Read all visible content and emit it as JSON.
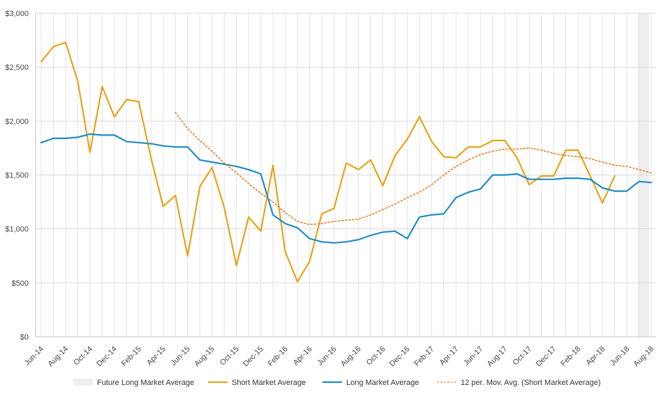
{
  "chart_data": {
    "type": "line",
    "categories": [
      "Jun-14",
      "Jul-14",
      "Aug-14",
      "Sep-14",
      "Oct-14",
      "Nov-14",
      "Dec-14",
      "Jan-15",
      "Feb-15",
      "Mar-15",
      "Apr-15",
      "May-15",
      "Jun-15",
      "Jul-15",
      "Aug-15",
      "Sep-15",
      "Oct-15",
      "Nov-15",
      "Dec-15",
      "Jan-16",
      "Feb-16",
      "Mar-16",
      "Apr-16",
      "May-16",
      "Jun-16",
      "Jul-16",
      "Aug-16",
      "Sep-16",
      "Oct-16",
      "Nov-16",
      "Dec-16",
      "Jan-17",
      "Feb-17",
      "Mar-17",
      "Apr-17",
      "May-17",
      "Jun-17",
      "Jul-17",
      "Aug-17",
      "Sep-17",
      "Oct-17",
      "Nov-17",
      "Dec-17",
      "Jan-18",
      "Feb-18",
      "Mar-18",
      "Apr-18",
      "May-18",
      "Jun-18",
      "Jul-18",
      "Aug-18"
    ],
    "tick_labels": [
      "Jun-14",
      "Aug-14",
      "Oct-14",
      "Dec-14",
      "Feb-15",
      "Apr-15",
      "Jun-15",
      "Aug-15",
      "Oct-15",
      "Dec-15",
      "Feb-16",
      "Apr-16",
      "Jun-16",
      "Aug-16",
      "Oct-16",
      "Dec-16",
      "Feb-17",
      "Apr-17",
      "Jun-17",
      "Aug-17",
      "Oct-17",
      "Dec-17",
      "Feb-18",
      "Apr-18",
      "Jun-18",
      "Aug-18"
    ],
    "y_tick_labels": [
      "$0",
      "$500",
      "$1,000",
      "$1,500",
      "$2,000",
      "$2,500",
      "$3,000"
    ],
    "ylim": [
      0,
      3000
    ],
    "ytick_step": 500,
    "grid": true,
    "legend_position": "bottom",
    "series": [
      {
        "name": "Short Market Average",
        "color": "#E8A317",
        "style": "solid",
        "values": [
          2550,
          2690,
          2730,
          2370,
          1710,
          2320,
          2040,
          2200,
          2180,
          1660,
          1210,
          1310,
          750,
          1390,
          1570,
          1200,
          660,
          1110,
          980,
          1590,
          790,
          510,
          700,
          1140,
          1190,
          1610,
          1550,
          1640,
          1400,
          1680,
          1830,
          2040,
          1810,
          1670,
          1660,
          1760,
          1760,
          1820,
          1820,
          1660,
          1410,
          1490,
          1490,
          1730,
          1730,
          1490,
          1240,
          1490,
          null,
          null,
          null
        ]
      },
      {
        "name": "Long Market Average",
        "color": "#1F8DC6",
        "style": "solid",
        "values": [
          1800,
          1840,
          1840,
          1850,
          1880,
          1870,
          1870,
          1810,
          1800,
          1790,
          1770,
          1760,
          1760,
          1640,
          1620,
          1600,
          1580,
          1550,
          1510,
          1130,
          1050,
          1010,
          910,
          880,
          870,
          880,
          900,
          940,
          970,
          980,
          910,
          1110,
          1130,
          1140,
          1290,
          1340,
          1370,
          1500,
          1500,
          1510,
          1460,
          1460,
          1460,
          1470,
          1470,
          1460,
          1380,
          1350,
          1350,
          1440,
          1430
        ]
      },
      {
        "name": "12 per. Mov. Avg.  (Short Market Average)",
        "color": "#E67E22",
        "style": "dotted",
        "values": [
          null,
          null,
          null,
          null,
          null,
          null,
          null,
          null,
          null,
          null,
          null,
          2080,
          1930,
          1820,
          1720,
          1610,
          1520,
          1420,
          1330,
          1250,
          1150,
          1070,
          1040,
          1050,
          1070,
          1080,
          1090,
          1130,
          1180,
          1230,
          1290,
          1340,
          1410,
          1500,
          1580,
          1640,
          1690,
          1720,
          1740,
          1740,
          1750,
          1730,
          1700,
          1680,
          1670,
          1650,
          1620,
          1590,
          1580,
          1550,
          1520
        ]
      }
    ],
    "shaded_region": {
      "name": "Future Long Market Average",
      "color": "#EEEEEE",
      "from": "Jun-18",
      "to": "Aug-18"
    }
  }
}
